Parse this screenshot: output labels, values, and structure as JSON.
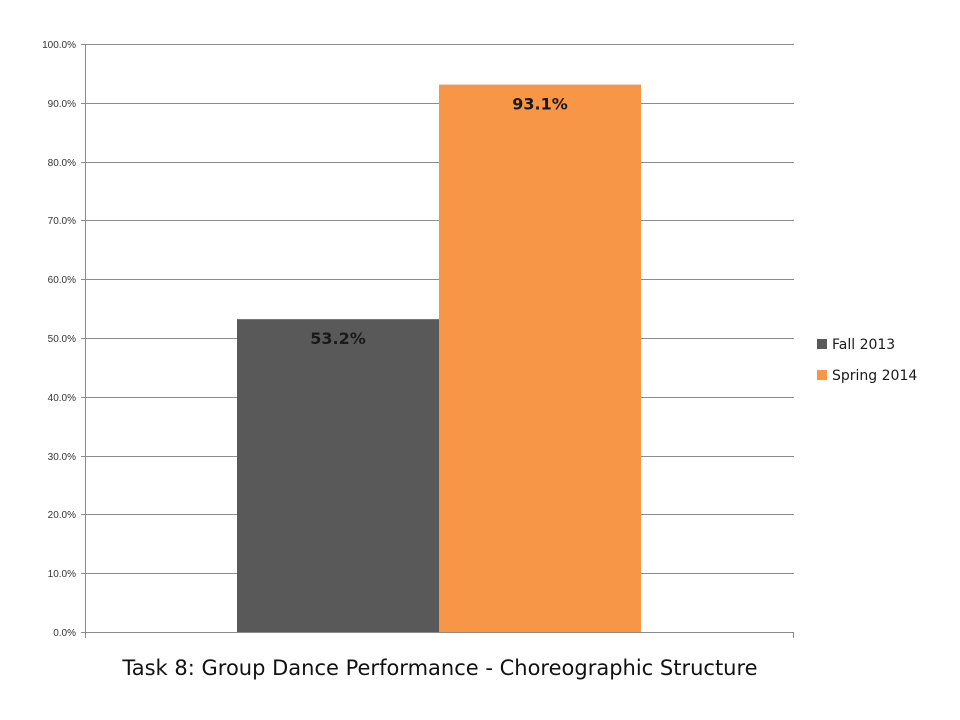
{
  "chart_data": {
    "type": "bar",
    "title": "Task 8: Group Dance Performance - Choreographic Structure",
    "categories": [
      ""
    ],
    "series": [
      {
        "name": "Fall 2013",
        "values": [
          53.2
        ],
        "color": "#595959",
        "label": "53.2%"
      },
      {
        "name": "Spring 2014",
        "values": [
          93.1
        ],
        "color": "#f79646",
        "label": "93.1%"
      }
    ],
    "ylim": [
      0,
      100
    ],
    "yticks": [
      0,
      10,
      20,
      30,
      40,
      50,
      60,
      70,
      80,
      90,
      100
    ],
    "ytick_labels": [
      "0.0%",
      "10.0%",
      "20.0%",
      "30.0%",
      "40.0%",
      "50.0%",
      "60.0%",
      "70.0%",
      "80.0%",
      "90.0%",
      "100.0%"
    ],
    "grid": true,
    "legend_position": "right",
    "gridline_color": "#8c8c8c",
    "axis_color": "#8c8c8c"
  }
}
